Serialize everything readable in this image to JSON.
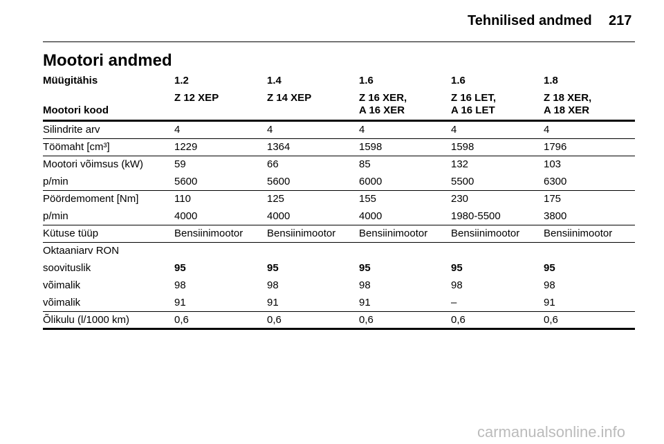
{
  "header": {
    "title": "Tehnilised andmed",
    "page": "217"
  },
  "section_title": "Mootori andmed",
  "table": {
    "header_rows": [
      {
        "label": "Müügitähis",
        "values": [
          "1.2",
          "1.4",
          "1.6",
          "1.6",
          "1.8"
        ]
      },
      {
        "label": "Mootori kood",
        "values": [
          "Z 12 XEP",
          "Z 14 XEP",
          "Z 16 XER,\nA 16 XER",
          "Z 16 LET,\nA 16 LET",
          "Z 18 XER,\nA 18 XER"
        ]
      }
    ],
    "groups": [
      [
        {
          "label": "Silindrite arv",
          "values": [
            "4",
            "4",
            "4",
            "4",
            "4"
          ]
        }
      ],
      [
        {
          "label": "Töömaht [cm³]",
          "values": [
            "1229",
            "1364",
            "1598",
            "1598",
            "1796"
          ]
        }
      ],
      [
        {
          "label": "Mootori võimsus (kW)",
          "values": [
            "59",
            "66",
            "85",
            "132",
            "103"
          ]
        },
        {
          "label": "p/min",
          "values": [
            "5600",
            "5600",
            "6000",
            "5500",
            "6300"
          ]
        }
      ],
      [
        {
          "label": "Pöördemoment [Nm]",
          "values": [
            "110",
            "125",
            "155",
            "230",
            "175"
          ]
        },
        {
          "label": "p/min",
          "values": [
            "4000",
            "4000",
            "4000",
            "1980-5500",
            "3800"
          ]
        }
      ],
      [
        {
          "label": "Kütuse tüüp",
          "values": [
            "Bensiinimootor",
            "Bensiinimootor",
            "Bensiinimootor",
            "Bensiinimootor",
            "Bensiinimootor"
          ]
        }
      ],
      [
        {
          "label": "Oktaaniarv RON",
          "values": []
        },
        {
          "label": "soovituslik",
          "values": [
            "95",
            "95",
            "95",
            "95",
            "95"
          ]
        },
        {
          "label": "võimalik",
          "values": [
            "98",
            "98",
            "98",
            "98",
            "98"
          ]
        },
        {
          "label": "võimalik",
          "values": [
            "91",
            "91",
            "91",
            "–",
            "91"
          ]
        }
      ],
      [
        {
          "label": "Õlikulu (l/1000 km)",
          "values": [
            "0,6",
            "0,6",
            "0,6",
            "0,6",
            "0,6"
          ]
        }
      ]
    ]
  },
  "watermark": "carmanualsonline.info"
}
